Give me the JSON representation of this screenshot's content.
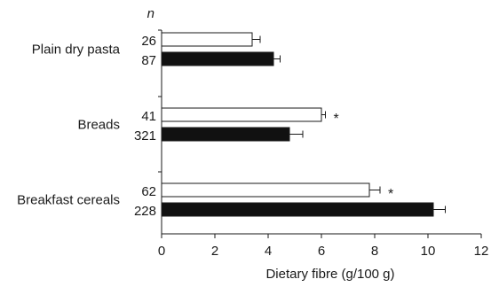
{
  "chart_data": {
    "type": "bar",
    "orientation": "horizontal",
    "title": "",
    "xlabel": "Dietary fibre (g/100 g)",
    "ylabel": "",
    "xlim": [
      0,
      12
    ],
    "xticks": [
      0,
      2,
      4,
      6,
      8,
      10,
      12
    ],
    "n_header": "n",
    "grid": false,
    "legend": "none",
    "categories": [
      "Plain dry pasta",
      "Breads",
      "Breakfast cereals"
    ],
    "series": [
      {
        "fill": "#ffffff",
        "values": [
          3.4,
          6.0,
          7.8
        ],
        "errors": [
          0.3,
          0.15,
          0.4
        ],
        "n": [
          "26",
          "41",
          "62"
        ],
        "annotations": [
          "",
          "*",
          "*"
        ]
      },
      {
        "fill": "#111111",
        "values": [
          4.2,
          4.8,
          10.2
        ],
        "errors": [
          0.25,
          0.5,
          0.45
        ],
        "n": [
          "87",
          "321",
          "228"
        ],
        "annotations": [
          "",
          "",
          ""
        ]
      }
    ]
  }
}
